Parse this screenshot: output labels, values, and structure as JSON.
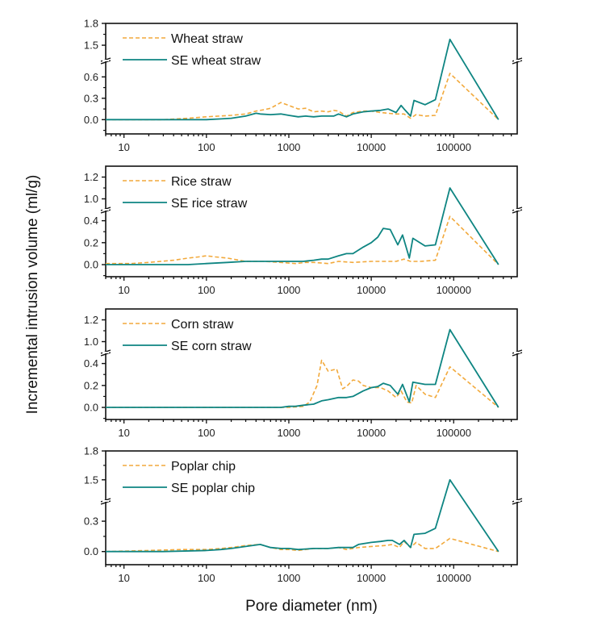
{
  "chart_data": {
    "type": "line",
    "xlabel": "Pore diameter (nm)",
    "ylabel": "Incremental intrusion volume (ml/g)",
    "xscale": "log",
    "xlim": [
      6,
      590000
    ],
    "x_ticks": [
      10,
      100,
      1000,
      10000,
      100000
    ],
    "x_tick_labels": [
      "10",
      "100",
      "1000",
      "10000",
      "100000"
    ],
    "grid": false,
    "legend_position": "top-left",
    "colors": {
      "untreated": "#F2A93B",
      "steam_exploded": "#0E8582"
    },
    "panels": [
      {
        "id": "wheat",
        "y_break": true,
        "y_lower": [
          -0.2,
          0.83
        ],
        "y_upper": [
          1.29,
          1.8
        ],
        "y_ticks": [
          0.0,
          0.3,
          0.6,
          1.5,
          1.8
        ],
        "y_tick_labels": [
          "0.0",
          "0.3",
          "0.6",
          "1.5",
          "1.8"
        ],
        "series": [
          {
            "name": "Wheat straw",
            "style": "dashed",
            "x": [
              6,
              30,
              60,
              100,
              200,
              300,
              400,
              500,
              600,
              800,
              1000,
              1300,
              1600,
              2000,
              2500,
              3000,
              3500,
              4000,
              5000,
              6000,
              8000,
              10000,
              13000,
              16000,
              20000,
              25000,
              30000,
              35000,
              45000,
              60000,
              90000,
              350000
            ],
            "y": [
              0.0,
              0.0,
              0.02,
              0.04,
              0.06,
              0.08,
              0.12,
              0.14,
              0.16,
              0.24,
              0.2,
              0.15,
              0.16,
              0.11,
              0.12,
              0.11,
              0.13,
              0.12,
              0.05,
              0.1,
              0.12,
              0.12,
              0.1,
              0.09,
              0.08,
              0.08,
              0.02,
              0.07,
              0.05,
              0.06,
              0.65,
              0.0
            ]
          },
          {
            "name": "SE wheat straw",
            "style": "solid",
            "x": [
              6,
              100,
              150,
              200,
              300,
              400,
              450,
              600,
              800,
              1000,
              1300,
              1600,
              2000,
              2500,
              3000,
              3500,
              4000,
              5000,
              6000,
              8000,
              10000,
              13000,
              16000,
              20000,
              23000,
              25000,
              30000,
              33000,
              45000,
              60000,
              90000,
              350000
            ],
            "y": [
              0.0,
              0.0,
              0.01,
              0.02,
              0.05,
              0.09,
              0.08,
              0.07,
              0.08,
              0.06,
              0.04,
              0.05,
              0.04,
              0.05,
              0.05,
              0.05,
              0.08,
              0.04,
              0.08,
              0.11,
              0.12,
              0.13,
              0.15,
              0.1,
              0.2,
              0.15,
              0.05,
              0.27,
              0.21,
              0.28,
              1.58,
              0.0
            ]
          }
        ]
      },
      {
        "id": "rice",
        "y_break": true,
        "y_lower": [
          -0.11,
          0.5
        ],
        "y_upper": [
          0.9,
          1.3
        ],
        "y_ticks": [
          0.0,
          0.2,
          0.4,
          1.0,
          1.2
        ],
        "y_tick_labels": [
          "0.0",
          "0.2",
          "0.4",
          "1.0",
          "1.2"
        ],
        "series": [
          {
            "name": "Rice straw",
            "style": "dashed",
            "x": [
              6,
              12,
              20,
              40,
              60,
              80,
              100,
              130,
              180,
              250,
              300,
              500,
              800,
              1200,
              1600,
              2000,
              3000,
              4000,
              6000,
              10000,
              15000,
              20000,
              25000,
              30000,
              40000,
              60000,
              90000,
              350000
            ],
            "y": [
              0.01,
              0.01,
              0.02,
              0.04,
              0.06,
              0.07,
              0.08,
              0.07,
              0.06,
              0.04,
              0.03,
              0.03,
              0.02,
              0.01,
              0.02,
              0.02,
              0.01,
              0.03,
              0.02,
              0.03,
              0.03,
              0.03,
              0.05,
              0.03,
              0.03,
              0.04,
              0.44,
              0.0
            ]
          },
          {
            "name": "SE rice straw",
            "style": "solid",
            "x": [
              6,
              60,
              100,
              180,
              300,
              500,
              800,
              1200,
              1500,
              2000,
              2500,
              3000,
              4000,
              5000,
              6000,
              8000,
              10000,
              12000,
              14000,
              17000,
              21000,
              24000,
              29000,
              32000,
              45000,
              60000,
              90000,
              350000
            ],
            "y": [
              0.0,
              0.0,
              0.01,
              0.02,
              0.03,
              0.03,
              0.03,
              0.03,
              0.03,
              0.04,
              0.05,
              0.05,
              0.08,
              0.1,
              0.1,
              0.16,
              0.2,
              0.25,
              0.33,
              0.32,
              0.18,
              0.27,
              0.06,
              0.24,
              0.17,
              0.18,
              1.1,
              0.0
            ]
          }
        ]
      },
      {
        "id": "corn",
        "y_break": true,
        "y_lower": [
          -0.11,
          0.5
        ],
        "y_upper": [
          0.9,
          1.3
        ],
        "y_ticks": [
          0.0,
          0.2,
          0.4,
          1.0,
          1.2
        ],
        "y_tick_labels": [
          "0.0",
          "0.2",
          "0.4",
          "1.0",
          "1.2"
        ],
        "series": [
          {
            "name": "Corn straw",
            "style": "dashed",
            "x": [
              6,
              1000,
              1500,
              1800,
              2200,
              2500,
              3000,
              3800,
              4500,
              5000,
              6000,
              7000,
              8000,
              10000,
              13000,
              16000,
              20000,
              23000,
              27000,
              31000,
              35000,
              45000,
              60000,
              90000,
              350000
            ],
            "y": [
              0.0,
              0.0,
              0.01,
              0.05,
              0.2,
              0.43,
              0.33,
              0.35,
              0.17,
              0.19,
              0.25,
              0.24,
              0.2,
              0.18,
              0.18,
              0.15,
              0.09,
              0.15,
              0.05,
              0.04,
              0.2,
              0.12,
              0.09,
              0.37,
              0.0
            ]
          },
          {
            "name": "SE corn straw",
            "style": "solid",
            "x": [
              6,
              800,
              1000,
              1200,
              1500,
              2000,
              2500,
              3000,
              4000,
              5000,
              6000,
              8000,
              10000,
              12000,
              14000,
              17000,
              21000,
              24000,
              29000,
              32000,
              45000,
              60000,
              90000,
              350000
            ],
            "y": [
              0.0,
              0.0,
              0.01,
              0.01,
              0.02,
              0.03,
              0.06,
              0.07,
              0.09,
              0.09,
              0.1,
              0.15,
              0.18,
              0.19,
              0.22,
              0.2,
              0.12,
              0.21,
              0.05,
              0.23,
              0.21,
              0.21,
              1.11,
              0.0
            ]
          }
        ]
      },
      {
        "id": "poplar",
        "y_break": true,
        "y_lower": [
          -0.13,
          0.5
        ],
        "y_upper": [
          1.28,
          1.8
        ],
        "y_ticks": [
          0.0,
          0.3,
          1.5,
          1.8
        ],
        "y_tick_labels": [
          "0.0",
          "0.3",
          "1.5",
          "1.8"
        ],
        "series": [
          {
            "name": "Poplar chip",
            "style": "dashed",
            "x": [
              6,
              20,
              50,
              100,
              150,
              200,
              300,
              450,
              600,
              800,
              1000,
              1300,
              2000,
              3000,
              4000,
              5000,
              7000,
              10000,
              15000,
              18000,
              22000,
              25000,
              30000,
              35000,
              45000,
              60000,
              90000,
              350000
            ],
            "y": [
              0.0,
              0.01,
              0.02,
              0.02,
              0.03,
              0.04,
              0.06,
              0.07,
              0.04,
              0.02,
              0.02,
              0.01,
              0.03,
              0.03,
              0.04,
              0.02,
              0.04,
              0.05,
              0.06,
              0.07,
              0.04,
              0.1,
              0.04,
              0.09,
              0.03,
              0.03,
              0.13,
              0.0
            ]
          },
          {
            "name": "SE poplar chip",
            "style": "solid",
            "x": [
              6,
              30,
              100,
              150,
              200,
              300,
              450,
              600,
              800,
              1000,
              1300,
              2000,
              3000,
              4000,
              5000,
              6000,
              7000,
              10000,
              13000,
              16000,
              18000,
              22000,
              25000,
              30000,
              33000,
              45000,
              60000,
              90000,
              350000
            ],
            "y": [
              0.0,
              0.0,
              0.01,
              0.02,
              0.03,
              0.05,
              0.07,
              0.04,
              0.03,
              0.03,
              0.02,
              0.03,
              0.03,
              0.04,
              0.04,
              0.04,
              0.07,
              0.09,
              0.1,
              0.11,
              0.11,
              0.07,
              0.11,
              0.04,
              0.17,
              0.18,
              0.23,
              1.5,
              0.0
            ]
          }
        ]
      }
    ]
  }
}
